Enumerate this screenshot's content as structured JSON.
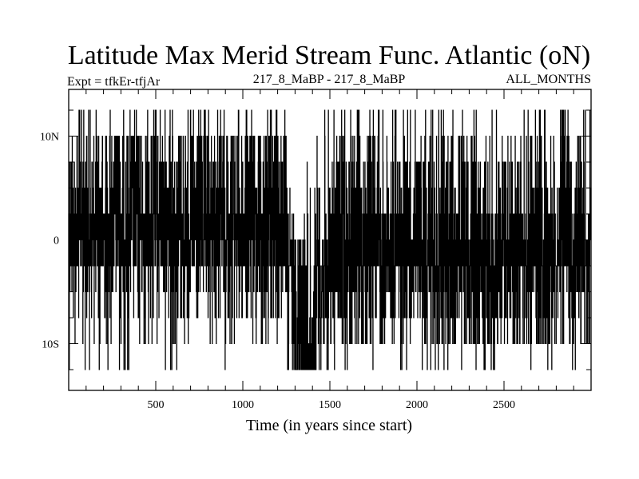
{
  "chart_data": {
    "type": "line",
    "title": "Latitude Max Merid Stream Func. Atlantic (oN)",
    "subtitle_left": "Expt = tfkEr-tfjAr",
    "subtitle_center": "217_8_MaBP - 217_8_MaBP",
    "subtitle_right": "ALL_MONTHS",
    "xlabel": "Time (in years since start)",
    "ylabel": "",
    "xlim": [
      0,
      3000
    ],
    "ylim": [
      -14.5,
      14.5
    ],
    "x_ticks": [
      {
        "value": 500,
        "label": "500"
      },
      {
        "value": 1000,
        "label": "1000"
      },
      {
        "value": 1500,
        "label": "1500"
      },
      {
        "value": 2000,
        "label": "2000"
      },
      {
        "value": 2500,
        "label": "2500"
      }
    ],
    "y_ticks": [
      {
        "value": 10,
        "label": "10N"
      },
      {
        "value": 0,
        "label": "0"
      },
      {
        "value": -10,
        "label": "10S"
      }
    ],
    "y_minor_step": 2.5,
    "x_minor_step": 100,
    "grid": false,
    "legend": "none",
    "series": [
      {
        "values_description_levels": [
          12.5,
          10,
          7.5,
          5,
          2.5,
          0,
          -2.5,
          -5,
          -7.5,
          -10,
          -12.5
        ],
        "segments": [
          {
            "x_start": 0,
            "x_end": 1250,
            "weights": [
              3,
              10,
              9,
              8,
              22,
              16,
              17,
              6,
              4,
              3,
              2
            ]
          },
          {
            "x_start": 1250,
            "x_end": 1300,
            "weights": [
              0,
              0,
              0,
              2,
              10,
              16,
              30,
              14,
              10,
              10,
              8
            ]
          },
          {
            "x_start": 1300,
            "x_end": 1420,
            "weights": [
              0,
              0,
              1,
              2,
              4,
              6,
              8,
              8,
              10,
              20,
              40
            ]
          },
          {
            "x_start": 1420,
            "x_end": 1500,
            "weights": [
              1,
              2,
              3,
              5,
              8,
              10,
              18,
              14,
              12,
              12,
              8
            ]
          },
          {
            "x_start": 1500,
            "x_end": 3000,
            "weights": [
              3,
              5,
              5,
              7,
              14,
              14,
              26,
              10,
              7,
              7,
              2
            ]
          }
        ]
      }
    ]
  }
}
